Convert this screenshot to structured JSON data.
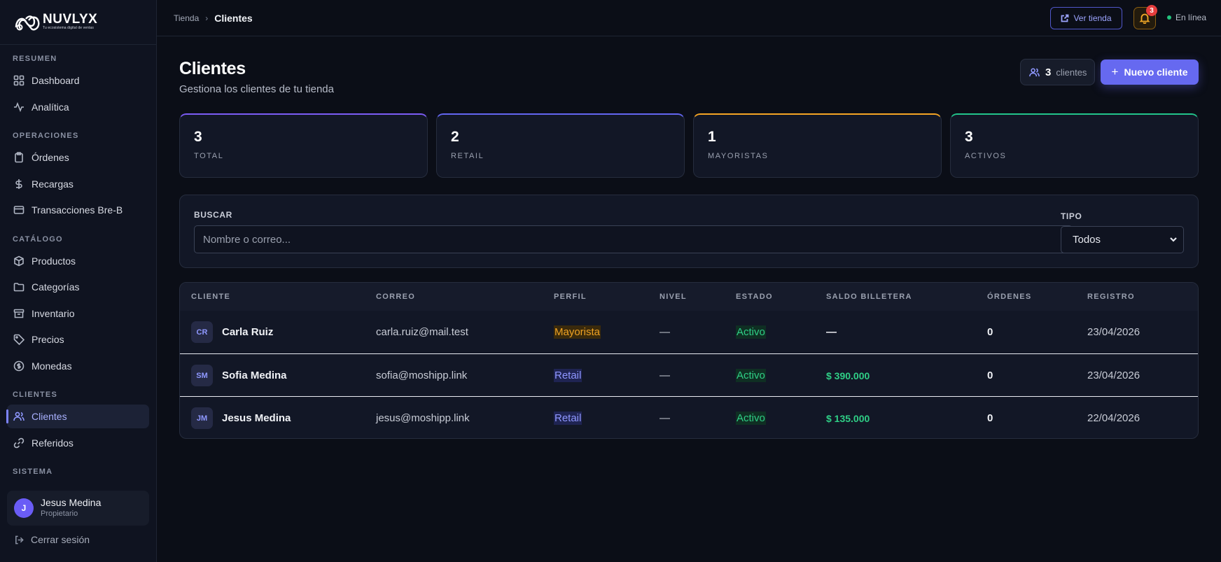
{
  "brand": {
    "name": "NUVLYX",
    "tagline": "Tu ecosistema digital de ventas"
  },
  "sidebar": {
    "sections": [
      {
        "title": "RESUMEN",
        "items": [
          {
            "label": "Dashboard",
            "icon": "grid-icon"
          },
          {
            "label": "Analítica",
            "icon": "activity-icon"
          }
        ]
      },
      {
        "title": "OPERACIONES",
        "items": [
          {
            "label": "Órdenes",
            "icon": "clipboard-icon"
          },
          {
            "label": "Recargas",
            "icon": "dollar-icon"
          },
          {
            "label": "Transacciones Bre-B",
            "icon": "card-icon"
          }
        ]
      },
      {
        "title": "CATÁLOGO",
        "items": [
          {
            "label": "Productos",
            "icon": "box-icon"
          },
          {
            "label": "Categorías",
            "icon": "folder-icon"
          },
          {
            "label": "Inventario",
            "icon": "archive-icon"
          },
          {
            "label": "Precios",
            "icon": "tag-icon"
          },
          {
            "label": "Monedas",
            "icon": "coin-icon"
          }
        ]
      },
      {
        "title": "CLIENTES",
        "items": [
          {
            "label": "Clientes",
            "icon": "users-icon",
            "active": true
          },
          {
            "label": "Referidos",
            "icon": "link-icon"
          }
        ]
      },
      {
        "title": "SISTEMA",
        "items": []
      }
    ],
    "user": {
      "initial": "J",
      "name": "Jesus Medina",
      "role": "Propietario"
    },
    "logout_label": "Cerrar sesión"
  },
  "topbar": {
    "breadcrumb": {
      "root": "Tienda",
      "separator": "›",
      "current": "Clientes"
    },
    "view_store_label": "Ver tienda",
    "notifications_count": "3",
    "status_label": "En línea"
  },
  "header": {
    "title": "Clientes",
    "subtitle": "Gestiona los clientes de tu tienda",
    "count_value": "3",
    "count_label": "clientes",
    "new_button_label": "Nuevo cliente",
    "new_button_icon": "+"
  },
  "stats": [
    {
      "value": "3",
      "label": "TOTAL",
      "accent": "#7c5cf6"
    },
    {
      "value": "2",
      "label": "RETAIL",
      "accent": "#6366f1"
    },
    {
      "value": "1",
      "label": "MAYORISTAS",
      "accent": "#f5a524"
    },
    {
      "value": "3",
      "label": "ACTIVOS",
      "accent": "#22c58b"
    }
  ],
  "filters": {
    "search_label": "BUSCAR",
    "search_placeholder": "Nombre o correo...",
    "search_value": "",
    "type_label": "TIPO",
    "type_value": "Todos"
  },
  "table": {
    "columns": [
      "CLIENTE",
      "CORREO",
      "PERFIL",
      "NIVEL",
      "ESTADO",
      "SALDO BILLETERA",
      "ÓRDENES",
      "REGISTRO"
    ],
    "rows": [
      {
        "initials": "CR",
        "name": "Carla Ruiz",
        "email": "carla.ruiz@mail.test",
        "profile": "Mayorista",
        "level": "—",
        "status": "Activo",
        "balance": "—",
        "orders": "0",
        "date": "23/04/2026"
      },
      {
        "initials": "SM",
        "name": "Sofia Medina",
        "email": "sofia@moshipp.link",
        "profile": "Retail",
        "level": "—",
        "status": "Activo",
        "balance": "$ 390.000",
        "orders": "0",
        "date": "23/04/2026"
      },
      {
        "initials": "JM",
        "name": "Jesus Medina",
        "email": "jesus@moshipp.link",
        "profile": "Retail",
        "level": "—",
        "status": "Activo",
        "balance": "$ 135.000",
        "orders": "0",
        "date": "22/04/2026"
      }
    ]
  },
  "colors": {
    "background": "#0b0e17",
    "accent": "#6669f0",
    "success": "#2fcf86",
    "warning": "#f0a323",
    "danger": "#e53d3d"
  }
}
